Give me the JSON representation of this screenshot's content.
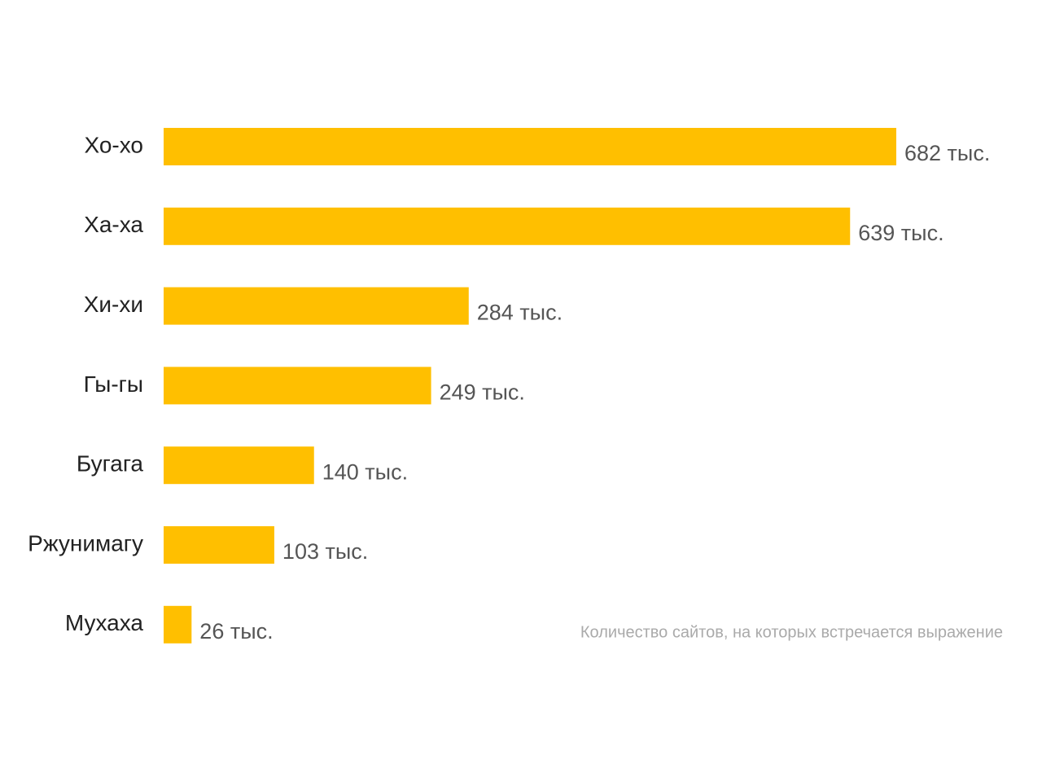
{
  "chart_data": {
    "type": "bar",
    "orientation": "horizontal",
    "categories": [
      "Хо-хо",
      "Ха-ха",
      "Хи-хи",
      "Гы-гы",
      "Бугага",
      "Ржунимагу",
      "Мухаха"
    ],
    "values": [
      682,
      639,
      284,
      249,
      140,
      103,
      26
    ],
    "value_labels": [
      "682 тыс.",
      "639 тыс.",
      "284 тыс.",
      "249 тыс.",
      "140 тыс.",
      "103 тыс.",
      "26 тыс."
    ],
    "color": "#ffbf00",
    "annotation": "Количество сайтов, на которых встречается выражение"
  }
}
